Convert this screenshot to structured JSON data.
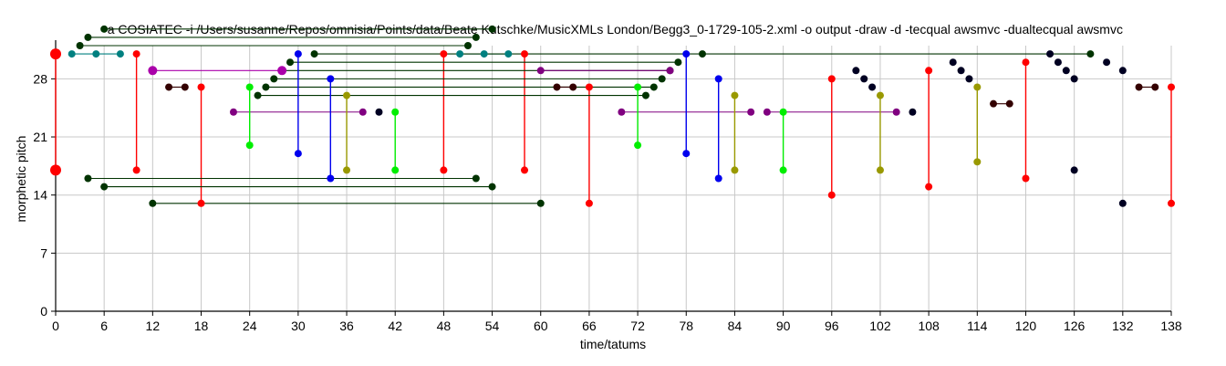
{
  "chart_data": {
    "type": "scatter",
    "title": "-a COSIATEC -i /Users/susanne/Repos/omnisia/Points/data/Beate Kutschke/MusicXMLs London/Begg3_0-1729-105-2.xml -o output -draw -d -tecqual awsmvc -dualtecqual awsmvc",
    "xlabel": "time/tatums",
    "ylabel": "morphetic pitch",
    "xlim": [
      0,
      138
    ],
    "ylim": [
      0,
      32
    ],
    "xticks": [
      "0",
      "6",
      "12",
      "18",
      "24",
      "30",
      "36",
      "42",
      "48",
      "54",
      "60",
      "66",
      "72",
      "78",
      "84",
      "90",
      "96",
      "102",
      "108",
      "114",
      "120",
      "126",
      "132",
      "138"
    ],
    "yticks": [
      "0",
      "7",
      "14",
      "21",
      "28"
    ],
    "grid": true,
    "series": [
      {
        "color": "#ff0000",
        "points": [
          [
            0,
            31
          ],
          [
            0,
            17
          ]
        ],
        "segments": [
          [
            [
              0,
              31
            ],
            [
              0,
              17
            ]
          ]
        ],
        "size": 6
      },
      {
        "color": "#ff0000",
        "points": [
          [
            10,
            31
          ],
          [
            10,
            17
          ],
          [
            18,
            27
          ],
          [
            18,
            13
          ],
          [
            48,
            31
          ],
          [
            48,
            17
          ],
          [
            58,
            31
          ],
          [
            58,
            17
          ],
          [
            66,
            27
          ],
          [
            66,
            13
          ],
          [
            96,
            28
          ],
          [
            96,
            14
          ],
          [
            108,
            29
          ],
          [
            108,
            15
          ],
          [
            120,
            30
          ],
          [
            120,
            16
          ],
          [
            138,
            27
          ],
          [
            138,
            13
          ]
        ],
        "segments": [
          [
            [
              10,
              31
            ],
            [
              10,
              17
            ]
          ],
          [
            [
              18,
              27
            ],
            [
              18,
              13
            ]
          ],
          [
            [
              48,
              31
            ],
            [
              48,
              17
            ]
          ],
          [
            [
              58,
              31
            ],
            [
              58,
              17
            ]
          ],
          [
            [
              66,
              27
            ],
            [
              66,
              13
            ]
          ],
          [
            [
              96,
              28
            ],
            [
              96,
              14
            ]
          ],
          [
            [
              108,
              29
            ],
            [
              108,
              15
            ]
          ],
          [
            [
              120,
              30
            ],
            [
              120,
              16
            ]
          ],
          [
            [
              138,
              27
            ],
            [
              138,
              13
            ]
          ]
        ],
        "size": 4
      },
      {
        "color": "#008080",
        "points": [
          [
            2,
            31
          ],
          [
            5,
            31
          ],
          [
            8,
            31
          ],
          [
            50,
            31
          ],
          [
            53,
            31
          ],
          [
            56,
            31
          ]
        ],
        "segments": [
          [
            [
              2,
              31
            ],
            [
              8,
              31
            ]
          ],
          [
            [
              50,
              31
            ],
            [
              56,
              31
            ]
          ]
        ],
        "size": 4
      },
      {
        "color": "#003300",
        "points": [
          [
            3,
            32
          ],
          [
            4,
            33
          ],
          [
            6,
            34
          ],
          [
            51,
            32
          ],
          [
            52,
            33
          ],
          [
            54,
            34
          ],
          [
            4,
            16
          ],
          [
            6,
            15
          ],
          [
            12,
            13
          ],
          [
            52,
            16
          ],
          [
            54,
            15
          ],
          [
            60,
            13
          ],
          [
            32,
            31
          ],
          [
            80,
            31
          ],
          [
            128,
            31
          ],
          [
            25,
            26
          ],
          [
            26,
            27
          ],
          [
            27,
            28
          ],
          [
            28,
            29
          ],
          [
            29,
            30
          ],
          [
            73,
            26
          ],
          [
            74,
            27
          ],
          [
            75,
            28
          ],
          [
            76,
            29
          ],
          [
            77,
            30
          ]
        ],
        "segments": [
          [
            [
              3,
              32
            ],
            [
              51,
              32
            ]
          ],
          [
            [
              4,
              33
            ],
            [
              52,
              33
            ]
          ],
          [
            [
              6,
              34
            ],
            [
              54,
              34
            ]
          ],
          [
            [
              4,
              16
            ],
            [
              52,
              16
            ]
          ],
          [
            [
              6,
              15
            ],
            [
              54,
              15
            ]
          ],
          [
            [
              12,
              13
            ],
            [
              60,
              13
            ]
          ],
          [
            [
              32,
              31
            ],
            [
              128,
              31
            ]
          ],
          [
            [
              25,
              26
            ],
            [
              73,
              26
            ]
          ],
          [
            [
              26,
              27
            ],
            [
              74,
              27
            ]
          ],
          [
            [
              27,
              28
            ],
            [
              75,
              28
            ]
          ],
          [
            [
              28,
              29
            ],
            [
              76,
              29
            ]
          ],
          [
            [
              29,
              30
            ],
            [
              77,
              30
            ]
          ]
        ],
        "size": 4
      },
      {
        "color": "#aa00aa",
        "points": [
          [
            12,
            29
          ],
          [
            28,
            29
          ]
        ],
        "segments": [
          [
            [
              12,
              29
            ],
            [
              28,
              29
            ]
          ]
        ],
        "size": 5
      },
      {
        "color": "#800080",
        "points": [
          [
            60,
            29
          ],
          [
            76,
            29
          ],
          [
            22,
            24
          ],
          [
            38,
            24
          ],
          [
            70,
            24
          ],
          [
            86,
            24
          ],
          [
            88,
            24
          ],
          [
            104,
            24
          ]
        ],
        "segments": [
          [
            [
              60,
              29
            ],
            [
              76,
              29
            ]
          ],
          [
            [
              22,
              24
            ],
            [
              38,
              24
            ]
          ],
          [
            [
              70,
              24
            ],
            [
              86,
              24
            ]
          ],
          [
            [
              88,
              24
            ],
            [
              104,
              24
            ]
          ]
        ],
        "size": 4
      },
      {
        "color": "#330000",
        "points": [
          [
            14,
            27
          ],
          [
            16,
            27
          ],
          [
            62,
            27
          ],
          [
            64,
            27
          ],
          [
            116,
            25
          ],
          [
            118,
            25
          ],
          [
            134,
            27
          ],
          [
            136,
            27
          ]
        ],
        "segments": [
          [
            [
              14,
              27
            ],
            [
              16,
              27
            ]
          ],
          [
            [
              62,
              27
            ],
            [
              64,
              27
            ]
          ],
          [
            [
              116,
              25
            ],
            [
              118,
              25
            ]
          ],
          [
            [
              134,
              27
            ],
            [
              136,
              27
            ]
          ]
        ],
        "size": 4
      },
      {
        "color": "#00ee00",
        "points": [
          [
            24,
            27
          ],
          [
            24,
            20
          ],
          [
            42,
            24
          ],
          [
            42,
            17
          ],
          [
            72,
            27
          ],
          [
            72,
            20
          ],
          [
            90,
            24
          ],
          [
            90,
            17
          ]
        ],
        "segments": [
          [
            [
              24,
              27
            ],
            [
              24,
              20
            ]
          ],
          [
            [
              42,
              24
            ],
            [
              42,
              17
            ]
          ],
          [
            [
              72,
              27
            ],
            [
              72,
              20
            ]
          ],
          [
            [
              90,
              24
            ],
            [
              90,
              17
            ]
          ]
        ],
        "size": 4
      },
      {
        "color": "#0000ee",
        "points": [
          [
            30,
            31
          ],
          [
            30,
            19
          ],
          [
            34,
            28
          ],
          [
            34,
            16
          ],
          [
            78,
            31
          ],
          [
            78,
            19
          ],
          [
            82,
            28
          ],
          [
            82,
            16
          ]
        ],
        "segments": [
          [
            [
              30,
              31
            ],
            [
              30,
              19
            ]
          ],
          [
            [
              34,
              28
            ],
            [
              34,
              16
            ]
          ],
          [
            [
              78,
              31
            ],
            [
              78,
              19
            ]
          ],
          [
            [
              82,
              28
            ],
            [
              82,
              16
            ]
          ]
        ],
        "size": 4
      },
      {
        "color": "#999900",
        "points": [
          [
            36,
            26
          ],
          [
            36,
            17
          ],
          [
            84,
            26
          ],
          [
            84,
            17
          ],
          [
            102,
            26
          ],
          [
            102,
            17
          ],
          [
            114,
            27
          ],
          [
            114,
            18
          ]
        ],
        "segments": [
          [
            [
              36,
              26
            ],
            [
              36,
              17
            ]
          ],
          [
            [
              84,
              26
            ],
            [
              84,
              17
            ]
          ],
          [
            [
              102,
              26
            ],
            [
              102,
              17
            ]
          ],
          [
            [
              114,
              27
            ],
            [
              114,
              18
            ]
          ]
        ],
        "size": 4
      },
      {
        "color": "#000022",
        "points": [
          [
            40,
            24
          ],
          [
            99,
            29
          ],
          [
            100,
            28
          ],
          [
            101,
            27
          ],
          [
            106,
            24
          ],
          [
            111,
            30
          ],
          [
            112,
            29
          ],
          [
            113,
            28
          ],
          [
            123,
            31
          ],
          [
            124,
            30
          ],
          [
            125,
            29
          ],
          [
            126,
            28
          ],
          [
            130,
            30
          ],
          [
            132,
            29
          ],
          [
            126,
            17
          ],
          [
            132,
            13
          ]
        ],
        "segments": [],
        "size": 4
      }
    ]
  }
}
